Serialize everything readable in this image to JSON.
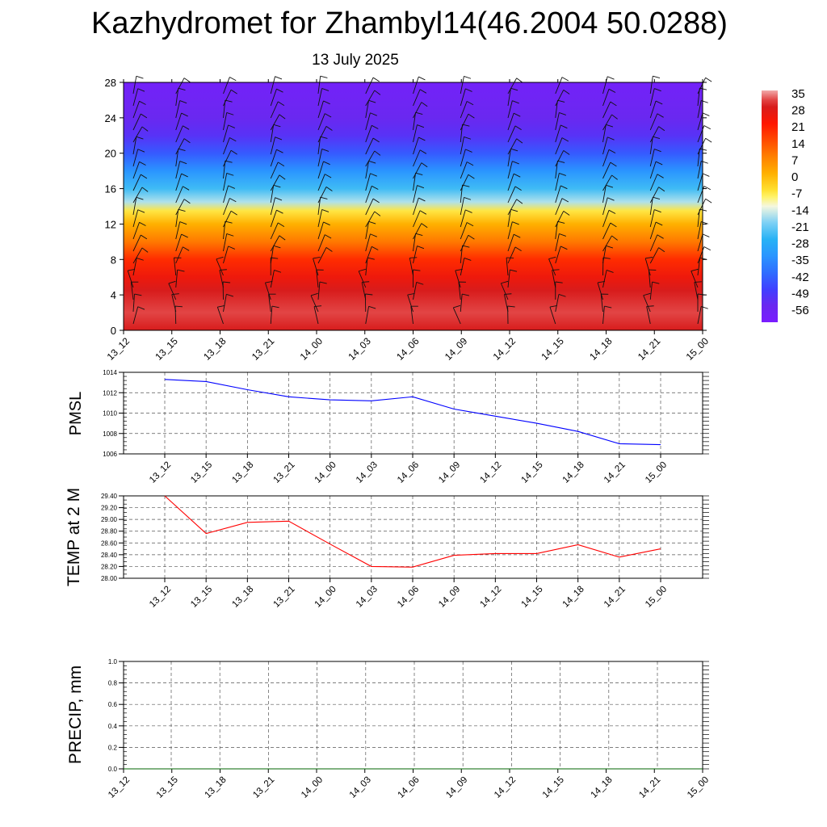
{
  "title": "Kazhydromet for Zhambyl14(46.2004 50.0288)",
  "subtitle": "13 July 2025",
  "chart_data": [
    {
      "type": "heatmap",
      "name": "temperature-cross-section",
      "x_ticks": [
        "13_12",
        "13_15",
        "13_18",
        "13_21",
        "14_00",
        "14_03",
        "14_06",
        "14_09",
        "14_12",
        "14_15",
        "14_18",
        "14_21",
        "15_00"
      ],
      "y_ticks": [
        0,
        4,
        8,
        12,
        16,
        20,
        24,
        28
      ],
      "ylim": [
        0,
        28
      ],
      "colorbar": {
        "labels": [
          "35",
          "28",
          "21",
          "14",
          "7",
          "0",
          "-7",
          "-14",
          "-21",
          "-28",
          "-35",
          "-42",
          "-49",
          "-56"
        ],
        "range": [
          -63,
          35
        ],
        "stops": [
          {
            "v": -63,
            "c": "#7a1cff"
          },
          {
            "v": -56,
            "c": "#6a28f0"
          },
          {
            "v": -49,
            "c": "#4040ff"
          },
          {
            "v": -42,
            "c": "#2f6dff"
          },
          {
            "v": -35,
            "c": "#2a95ff"
          },
          {
            "v": -28,
            "c": "#27b2f5"
          },
          {
            "v": -21,
            "c": "#7cd0f5"
          },
          {
            "v": -14,
            "c": "#f4f7e0"
          },
          {
            "v": -10,
            "c": "#fff36a"
          },
          {
            "v": -7,
            "c": "#ffe030"
          },
          {
            "v": 0,
            "c": "#ffb000"
          },
          {
            "v": 7,
            "c": "#ff8000"
          },
          {
            "v": 14,
            "c": "#ff4a00"
          },
          {
            "v": 21,
            "c": "#ff1600"
          },
          {
            "v": 28,
            "c": "#d81c1c"
          },
          {
            "v": 31,
            "c": "#e24545"
          },
          {
            "v": 35,
            "c": "#f2aaaa"
          }
        ]
      },
      "profile": [
        {
          "h": 0,
          "t": 28
        },
        {
          "h": 2,
          "t": 31
        },
        {
          "h": 4.5,
          "t": 28
        },
        {
          "h": 6,
          "t": 24
        },
        {
          "h": 8,
          "t": 18
        },
        {
          "h": 10,
          "t": 8
        },
        {
          "h": 12,
          "t": 0
        },
        {
          "h": 13.5,
          "t": -8
        },
        {
          "h": 14.5,
          "t": -18
        },
        {
          "h": 16,
          "t": -26
        },
        {
          "h": 18,
          "t": -35
        },
        {
          "h": 20,
          "t": -45
        },
        {
          "h": 22,
          "t": -53
        },
        {
          "h": 24,
          "t": -56
        },
        {
          "h": 26,
          "t": -58
        },
        {
          "h": 28,
          "t": -60
        }
      ]
    },
    {
      "type": "line",
      "name": "pmsl",
      "ylabel": "PMSL",
      "x": [
        "13_12",
        "13_15",
        "13_18",
        "13_21",
        "14_00",
        "14_03",
        "14_06",
        "14_09",
        "14_12",
        "14_15",
        "14_18",
        "14_21",
        "15_00"
      ],
      "values": [
        1013.3,
        1013.1,
        1012.3,
        1011.6,
        1011.3,
        1011.2,
        1011.6,
        1010.4,
        1009.7,
        1009.0,
        1008.2,
        1007.0,
        1006.9
      ],
      "ylim": [
        1006,
        1014
      ],
      "y_ticks": [
        "1006",
        "1008",
        "1010",
        "1012",
        "1014"
      ],
      "color": "#0000ff"
    },
    {
      "type": "line",
      "name": "temp-2m",
      "ylabel": "TEMP at 2 M",
      "x": [
        "13_12",
        "13_15",
        "13_18",
        "13_21",
        "14_00",
        "14_03",
        "14_06",
        "14_09",
        "14_12",
        "14_15",
        "14_18",
        "14_21",
        "15_00"
      ],
      "values": [
        29.4,
        28.76,
        28.95,
        28.97,
        28.58,
        28.2,
        28.19,
        28.39,
        28.42,
        28.42,
        28.57,
        28.36,
        28.5
      ],
      "ylim": [
        28.0,
        29.4
      ],
      "y_ticks": [
        "28.00",
        "28.20",
        "28.40",
        "28.60",
        "28.80",
        "29.00",
        "29.20",
        "29.40"
      ],
      "color": "#ff0000"
    },
    {
      "type": "line",
      "name": "precip",
      "ylabel": "PRECIP, mm",
      "x": [
        "13_12",
        "13_15",
        "13_18",
        "13_21",
        "14_00",
        "14_03",
        "14_06",
        "14_09",
        "14_12",
        "14_15",
        "14_18",
        "14_21",
        "15_00"
      ],
      "values": [
        0,
        0,
        0,
        0,
        0,
        0,
        0,
        0,
        0,
        0,
        0,
        0,
        0
      ],
      "ylim": [
        0,
        1
      ],
      "y_ticks": [
        "0.0",
        "0.2",
        "0.4",
        "0.6",
        "0.8",
        "1.0"
      ],
      "color": "#006400"
    }
  ]
}
